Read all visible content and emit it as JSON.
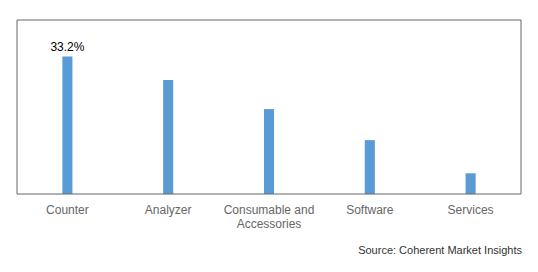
{
  "chart_data": {
    "type": "bar",
    "categories": [
      "Counter",
      "Analyzer",
      "Consumable and\nAccessories",
      "Software",
      "Services"
    ],
    "values": [
      33.2,
      27.5,
      20.5,
      13.0,
      5.0
    ],
    "data_labels": true,
    "value_labels": [
      "33.2%",
      null,
      null,
      null,
      null
    ],
    "color": "#5b9bd5",
    "ylim": [
      0,
      42
    ],
    "yticks": [],
    "tick_labels": "x",
    "grid": false,
    "annotations": [
      "Source: Coherent Market Insights"
    ]
  }
}
